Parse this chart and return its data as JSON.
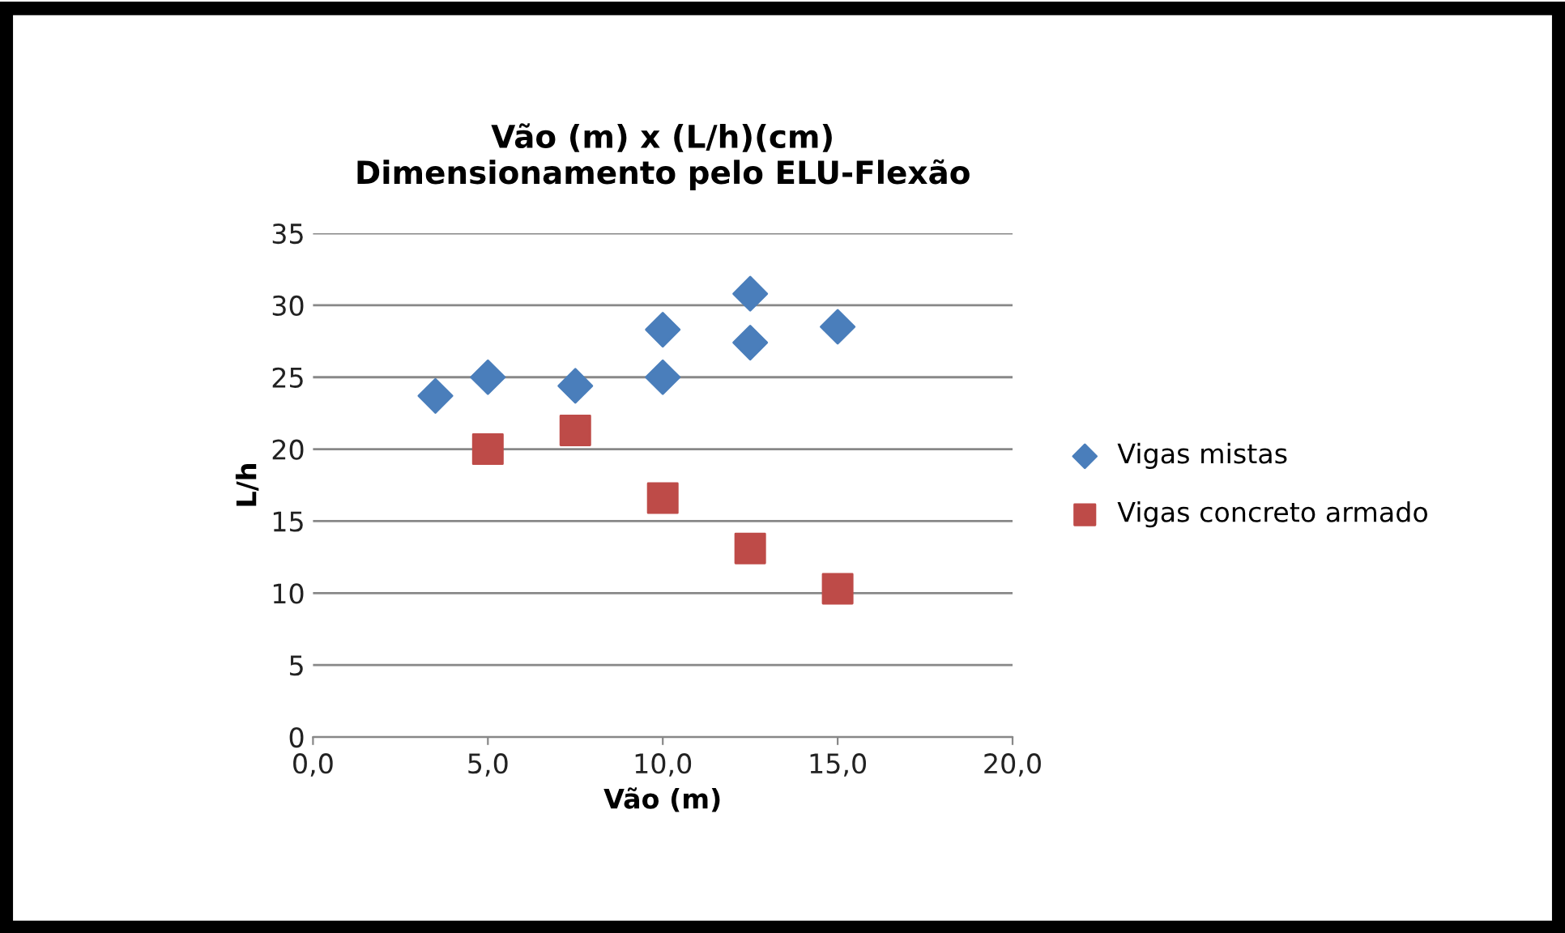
{
  "chart_data": {
    "type": "scatter",
    "title": "Vão (m) x (L/h)(cm)\nDimensionamento pelo ELU-Flexão",
    "xlabel": "Vão (m)",
    "ylabel": "L/h",
    "series": [
      {
        "name": "Vigas mistas",
        "color": "#4a7ebb",
        "marker": "diamond",
        "x": [
          3.5,
          5,
          7.5,
          10,
          10,
          12.5,
          12.5,
          15
        ],
        "values": [
          23.7,
          25,
          24.4,
          28.3,
          25,
          30.8,
          27.4,
          28.5
        ]
      },
      {
        "name": "Vigas concreto armado",
        "color": "#be4b48",
        "marker": "square",
        "x": [
          5,
          7.5,
          10,
          12.5,
          15
        ],
        "values": [
          20,
          21.3,
          16.6,
          13.1,
          10.3
        ]
      }
    ],
    "xlim": [
      0,
      20
    ],
    "xticks": [
      {
        "value": 0,
        "label": "0,0"
      },
      {
        "value": 5,
        "label": "5,0"
      },
      {
        "value": 10,
        "label": "10,0"
      },
      {
        "value": 15,
        "label": "15,0"
      },
      {
        "value": 20,
        "label": "20,0"
      }
    ],
    "ylim": [
      0,
      35
    ],
    "yticks": [
      0,
      5,
      10,
      15,
      20,
      25,
      30,
      35
    ],
    "grid": "y",
    "legend": "right"
  }
}
